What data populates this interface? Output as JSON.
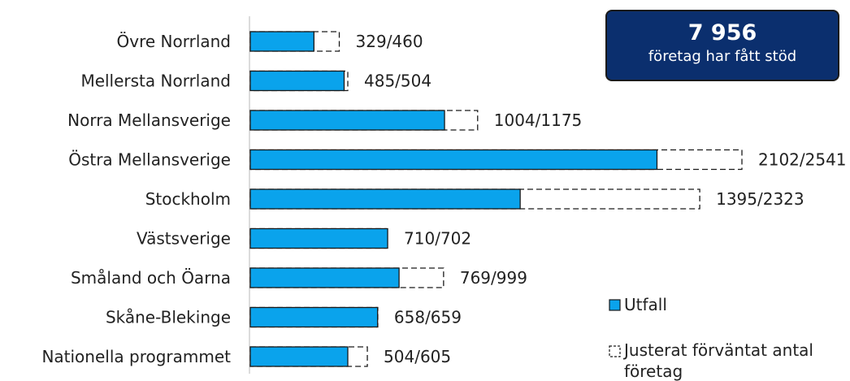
{
  "chart_data": {
    "type": "bar",
    "orientation": "horizontal",
    "categories": [
      "Övre Norrland",
      "Mellersta Norrland",
      "Norra Mellansverige",
      "Östra Mellansverige",
      "Stockholm",
      "Västsverige",
      "Småland och Öarna",
      "Skåne-Blekinge",
      "Nationella programmet"
    ],
    "series": [
      {
        "name": "Utfall",
        "values": [
          329,
          485,
          1004,
          2102,
          1395,
          710,
          769,
          658,
          504
        ],
        "color": "#0aa3ec",
        "style": "solid"
      },
      {
        "name": "Justerat förväntat antal företag",
        "values": [
          460,
          504,
          1175,
          2541,
          2323,
          702,
          999,
          659,
          605
        ],
        "style": "dashed-outline"
      }
    ],
    "data_labels": [
      "329/460",
      "485/504",
      "1004/1175",
      "2102/2541",
      "1395/2323",
      "710/702",
      "769/999",
      "658/659",
      "504/605"
    ],
    "xlim": [
      0,
      2541
    ],
    "grid": false,
    "legend_position": "bottom-right"
  },
  "stat_box": {
    "value": "7 956",
    "caption": "företag har fått stöd",
    "color": "#0b2f6e"
  },
  "legend": {
    "utfall_label": "Utfall",
    "expected_label_line1": "Justerat förväntat antal",
    "expected_label_line2": "företag"
  }
}
